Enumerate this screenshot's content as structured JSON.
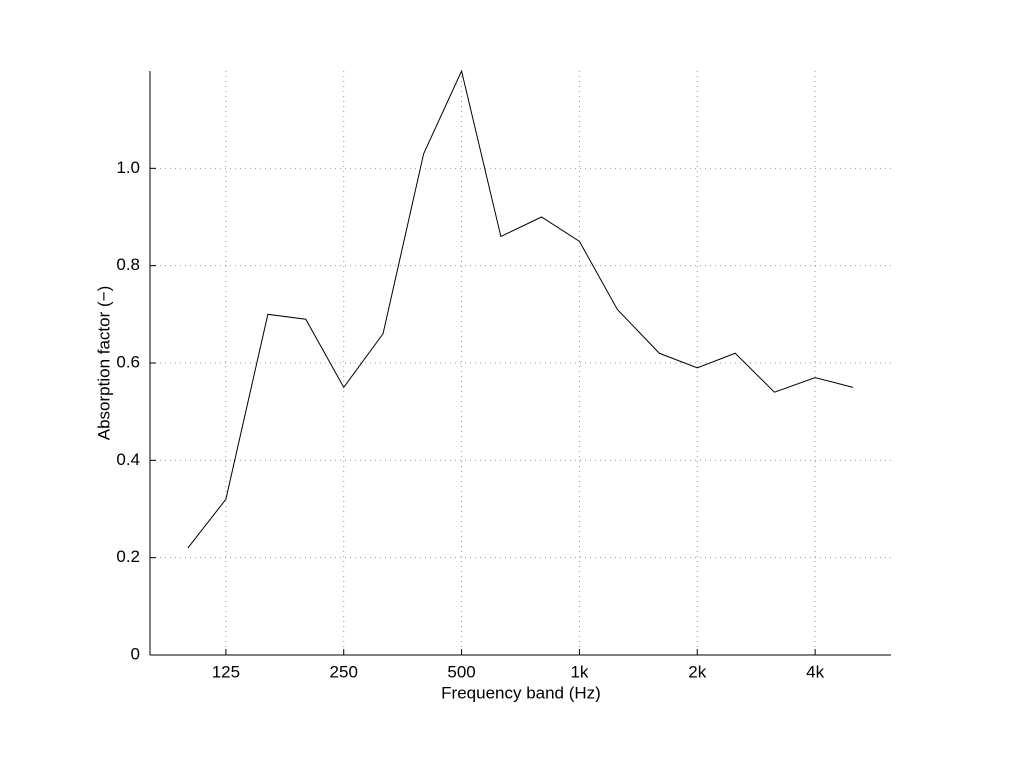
{
  "chart_data": {
    "type": "line",
    "xlabel": "Frequency band (Hz)",
    "ylabel": "Absorption factor (−)",
    "x": [
      100,
      125,
      160,
      200,
      250,
      315,
      400,
      500,
      630,
      800,
      1000,
      1250,
      1600,
      2000,
      2500,
      3150,
      4000,
      5000
    ],
    "values": [
      0.22,
      0.32,
      0.7,
      0.69,
      0.55,
      0.66,
      1.03,
      1.2,
      0.86,
      0.9,
      0.85,
      0.71,
      0.62,
      0.59,
      0.62,
      0.54,
      0.57,
      0.55
    ],
    "color": "#000000",
    "xscale": "log",
    "xlim": [
      80,
      6250
    ],
    "xticks": [
      125,
      250,
      500,
      {
        "value": 1000,
        "label": "1k"
      },
      {
        "value": 2000,
        "label": "2k"
      },
      {
        "value": 4000,
        "label": "4k"
      }
    ],
    "ylim": [
      0,
      1.2
    ],
    "yticks": [
      0,
      0.2,
      0.4,
      0.6,
      0.8,
      {
        "value": 1,
        "label": "1.0"
      }
    ],
    "grid": true
  }
}
